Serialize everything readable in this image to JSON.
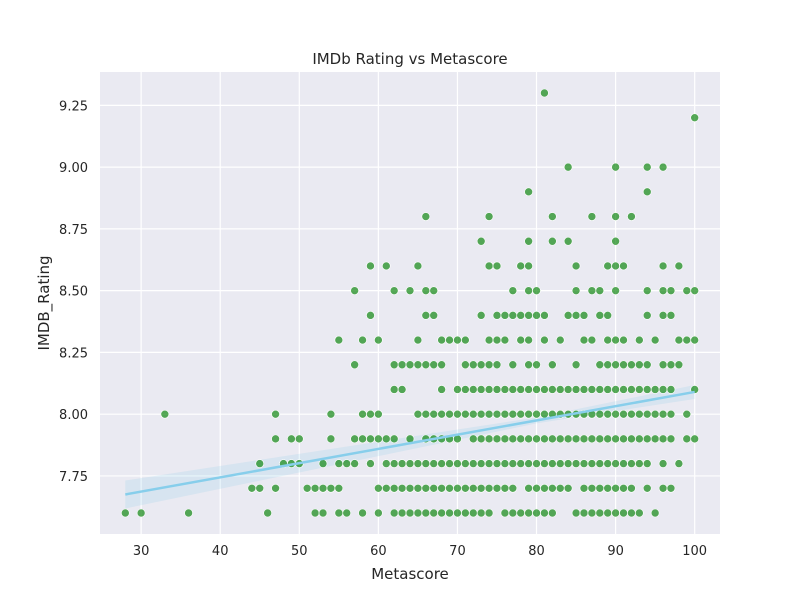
{
  "chart_data": {
    "type": "scatter",
    "title": "IMDb Rating vs Metascore",
    "xlabel": "Metascore",
    "ylabel": "IMDB_Rating",
    "xlim": [
      24.8,
      103.2
    ],
    "ylim": [
      7.515,
      9.385
    ],
    "xticks": [
      "30",
      "40",
      "50",
      "60",
      "70",
      "80",
      "90",
      "100"
    ],
    "xtick_values": [
      30,
      40,
      50,
      60,
      70,
      80,
      90,
      100
    ],
    "yticks": [
      "7.75",
      "8.00",
      "8.25",
      "8.50",
      "8.75",
      "9.00",
      "9.25"
    ],
    "ytick_values": [
      7.75,
      8.0,
      8.25,
      8.5,
      8.75,
      9.0,
      9.25
    ],
    "grid": true,
    "background": "#eaeaf2",
    "colors": {
      "points": "#008000",
      "regression": "#87ceeb"
    },
    "regression": {
      "x": [
        28,
        100
      ],
      "y": [
        7.675,
        8.09
      ]
    },
    "points": [
      [
        28,
        7.6
      ],
      [
        30,
        7.6
      ],
      [
        33,
        8.0
      ],
      [
        36,
        7.6
      ],
      [
        44,
        7.7
      ],
      [
        45,
        7.7
      ],
      [
        45,
        7.8
      ],
      [
        46,
        7.6
      ],
      [
        47,
        8.0
      ],
      [
        47,
        7.9
      ],
      [
        47,
        7.7
      ],
      [
        48,
        7.8
      ],
      [
        49,
        7.9
      ],
      [
        49,
        7.8
      ],
      [
        50,
        7.9
      ],
      [
        50,
        7.8
      ],
      [
        51,
        7.7
      ],
      [
        52,
        7.7
      ],
      [
        52,
        7.6
      ],
      [
        53,
        7.7
      ],
      [
        53,
        7.6
      ],
      [
        53,
        7.8
      ],
      [
        54,
        8.0
      ],
      [
        54,
        7.9
      ],
      [
        54,
        7.7
      ],
      [
        55,
        8.3
      ],
      [
        55,
        7.8
      ],
      [
        55,
        7.7
      ],
      [
        55,
        7.6
      ],
      [
        56,
        7.8
      ],
      [
        56,
        7.6
      ],
      [
        57,
        8.5
      ],
      [
        57,
        8.2
      ],
      [
        57,
        7.9
      ],
      [
        57,
        7.8
      ],
      [
        58,
        8.3
      ],
      [
        58,
        8.0
      ],
      [
        58,
        7.9
      ],
      [
        58,
        7.6
      ],
      [
        59,
        8.6
      ],
      [
        59,
        8.4
      ],
      [
        59,
        8.0
      ],
      [
        59,
        7.9
      ],
      [
        59,
        7.8
      ],
      [
        60,
        8.3
      ],
      [
        60,
        8.0
      ],
      [
        60,
        7.9
      ],
      [
        60,
        7.7
      ],
      [
        60,
        7.6
      ],
      [
        61,
        8.6
      ],
      [
        61,
        7.9
      ],
      [
        61,
        7.8
      ],
      [
        61,
        7.7
      ],
      [
        62,
        8.5
      ],
      [
        62,
        8.2
      ],
      [
        62,
        8.1
      ],
      [
        62,
        7.9
      ],
      [
        62,
        7.8
      ],
      [
        62,
        7.7
      ],
      [
        62,
        7.6
      ],
      [
        63,
        8.2
      ],
      [
        63,
        8.1
      ],
      [
        63,
        7.8
      ],
      [
        63,
        7.7
      ],
      [
        63,
        7.6
      ],
      [
        64,
        8.5
      ],
      [
        64,
        8.2
      ],
      [
        64,
        7.9
      ],
      [
        64,
        7.8
      ],
      [
        64,
        7.7
      ],
      [
        64,
        7.6
      ],
      [
        65,
        8.6
      ],
      [
        65,
        8.3
      ],
      [
        65,
        8.2
      ],
      [
        65,
        8.0
      ],
      [
        65,
        7.8
      ],
      [
        65,
        7.7
      ],
      [
        65,
        7.6
      ],
      [
        66,
        8.8
      ],
      [
        66,
        8.5
      ],
      [
        66,
        8.4
      ],
      [
        66,
        8.2
      ],
      [
        66,
        8.0
      ],
      [
        66,
        7.9
      ],
      [
        66,
        7.8
      ],
      [
        66,
        7.7
      ],
      [
        66,
        7.6
      ],
      [
        67,
        8.5
      ],
      [
        67,
        8.4
      ],
      [
        67,
        8.2
      ],
      [
        67,
        8.0
      ],
      [
        67,
        7.9
      ],
      [
        67,
        7.8
      ],
      [
        67,
        7.7
      ],
      [
        67,
        7.6
      ],
      [
        68,
        8.3
      ],
      [
        68,
        8.2
      ],
      [
        68,
        8.1
      ],
      [
        68,
        8.0
      ],
      [
        68,
        7.9
      ],
      [
        68,
        7.8
      ],
      [
        68,
        7.7
      ],
      [
        68,
        7.6
      ],
      [
        69,
        8.3
      ],
      [
        69,
        8.0
      ],
      [
        69,
        7.9
      ],
      [
        69,
        7.8
      ],
      [
        69,
        7.7
      ],
      [
        69,
        7.6
      ],
      [
        70,
        8.3
      ],
      [
        70,
        8.1
      ],
      [
        70,
        8.0
      ],
      [
        70,
        7.9
      ],
      [
        70,
        7.8
      ],
      [
        70,
        7.7
      ],
      [
        70,
        7.6
      ],
      [
        71,
        8.3
      ],
      [
        71,
        8.2
      ],
      [
        71,
        8.1
      ],
      [
        71,
        8.0
      ],
      [
        71,
        7.8
      ],
      [
        71,
        7.7
      ],
      [
        71,
        7.6
      ],
      [
        72,
        8.2
      ],
      [
        72,
        8.1
      ],
      [
        72,
        8.0
      ],
      [
        72,
        7.9
      ],
      [
        72,
        7.8
      ],
      [
        72,
        7.7
      ],
      [
        72,
        7.6
      ],
      [
        73,
        8.7
      ],
      [
        73,
        8.4
      ],
      [
        73,
        8.2
      ],
      [
        73,
        8.1
      ],
      [
        73,
        8.0
      ],
      [
        73,
        7.9
      ],
      [
        73,
        7.8
      ],
      [
        73,
        7.7
      ],
      [
        73,
        7.6
      ],
      [
        74,
        8.8
      ],
      [
        74,
        8.6
      ],
      [
        74,
        8.3
      ],
      [
        74,
        8.2
      ],
      [
        74,
        8.1
      ],
      [
        74,
        8.0
      ],
      [
        74,
        7.9
      ],
      [
        74,
        7.8
      ],
      [
        74,
        7.7
      ],
      [
        74,
        7.6
      ],
      [
        75,
        8.6
      ],
      [
        75,
        8.4
      ],
      [
        75,
        8.3
      ],
      [
        75,
        8.2
      ],
      [
        75,
        8.1
      ],
      [
        75,
        8.0
      ],
      [
        75,
        7.9
      ],
      [
        75,
        7.8
      ],
      [
        75,
        7.7
      ],
      [
        76,
        8.4
      ],
      [
        76,
        8.3
      ],
      [
        76,
        8.1
      ],
      [
        76,
        8.0
      ],
      [
        76,
        7.9
      ],
      [
        76,
        7.8
      ],
      [
        76,
        7.7
      ],
      [
        76,
        7.6
      ],
      [
        77,
        8.5
      ],
      [
        77,
        8.4
      ],
      [
        77,
        8.2
      ],
      [
        77,
        8.1
      ],
      [
        77,
        8.0
      ],
      [
        77,
        7.9
      ],
      [
        77,
        7.8
      ],
      [
        77,
        7.7
      ],
      [
        77,
        7.6
      ],
      [
        78,
        8.6
      ],
      [
        78,
        8.4
      ],
      [
        78,
        8.3
      ],
      [
        78,
        8.1
      ],
      [
        78,
        8.0
      ],
      [
        78,
        7.9
      ],
      [
        78,
        7.8
      ],
      [
        78,
        7.6
      ],
      [
        79,
        8.9
      ],
      [
        79,
        8.7
      ],
      [
        79,
        8.6
      ],
      [
        79,
        8.5
      ],
      [
        79,
        8.4
      ],
      [
        79,
        8.3
      ],
      [
        79,
        8.2
      ],
      [
        79,
        8.1
      ],
      [
        79,
        8.0
      ],
      [
        79,
        7.9
      ],
      [
        79,
        7.8
      ],
      [
        79,
        7.7
      ],
      [
        79,
        7.6
      ],
      [
        80,
        8.5
      ],
      [
        80,
        8.4
      ],
      [
        80,
        8.2
      ],
      [
        80,
        8.1
      ],
      [
        80,
        8.0
      ],
      [
        80,
        7.9
      ],
      [
        80,
        7.8
      ],
      [
        80,
        7.7
      ],
      [
        80,
        7.6
      ],
      [
        81,
        9.3
      ],
      [
        81,
        8.4
      ],
      [
        81,
        8.3
      ],
      [
        81,
        8.1
      ],
      [
        81,
        8.0
      ],
      [
        81,
        7.9
      ],
      [
        81,
        7.8
      ],
      [
        81,
        7.7
      ],
      [
        81,
        7.6
      ],
      [
        82,
        8.8
      ],
      [
        82,
        8.7
      ],
      [
        82,
        8.2
      ],
      [
        82,
        8.1
      ],
      [
        82,
        8.0
      ],
      [
        82,
        7.9
      ],
      [
        82,
        7.8
      ],
      [
        82,
        7.7
      ],
      [
        82,
        7.6
      ],
      [
        83,
        8.3
      ],
      [
        83,
        8.1
      ],
      [
        83,
        8.0
      ],
      [
        83,
        7.9
      ],
      [
        83,
        7.8
      ],
      [
        83,
        7.7
      ],
      [
        84,
        9.0
      ],
      [
        84,
        8.7
      ],
      [
        84,
        8.4
      ],
      [
        84,
        8.1
      ],
      [
        84,
        8.0
      ],
      [
        84,
        7.9
      ],
      [
        84,
        7.8
      ],
      [
        84,
        7.7
      ],
      [
        85,
        8.6
      ],
      [
        85,
        8.5
      ],
      [
        85,
        8.4
      ],
      [
        85,
        8.2
      ],
      [
        85,
        8.1
      ],
      [
        85,
        8.0
      ],
      [
        85,
        7.9
      ],
      [
        85,
        7.8
      ],
      [
        85,
        7.6
      ],
      [
        86,
        8.4
      ],
      [
        86,
        8.3
      ],
      [
        86,
        8.1
      ],
      [
        86,
        8.0
      ],
      [
        86,
        7.9
      ],
      [
        86,
        7.8
      ],
      [
        86,
        7.7
      ],
      [
        86,
        7.6
      ],
      [
        87,
        8.8
      ],
      [
        87,
        8.5
      ],
      [
        87,
        8.3
      ],
      [
        87,
        8.1
      ],
      [
        87,
        8.0
      ],
      [
        87,
        7.9
      ],
      [
        87,
        7.8
      ],
      [
        87,
        7.7
      ],
      [
        87,
        7.6
      ],
      [
        88,
        8.5
      ],
      [
        88,
        8.4
      ],
      [
        88,
        8.2
      ],
      [
        88,
        8.1
      ],
      [
        88,
        8.0
      ],
      [
        88,
        7.9
      ],
      [
        88,
        7.8
      ],
      [
        88,
        7.7
      ],
      [
        88,
        7.6
      ],
      [
        89,
        8.6
      ],
      [
        89,
        8.4
      ],
      [
        89,
        8.3
      ],
      [
        89,
        8.2
      ],
      [
        89,
        8.1
      ],
      [
        89,
        8.0
      ],
      [
        89,
        7.9
      ],
      [
        89,
        7.8
      ],
      [
        89,
        7.7
      ],
      [
        89,
        7.6
      ],
      [
        90,
        9.0
      ],
      [
        90,
        8.8
      ],
      [
        90,
        8.7
      ],
      [
        90,
        8.6
      ],
      [
        90,
        8.5
      ],
      [
        90,
        8.3
      ],
      [
        90,
        8.2
      ],
      [
        90,
        8.1
      ],
      [
        90,
        8.0
      ],
      [
        90,
        7.9
      ],
      [
        90,
        7.8
      ],
      [
        90,
        7.7
      ],
      [
        90,
        7.6
      ],
      [
        91,
        8.6
      ],
      [
        91,
        8.3
      ],
      [
        91,
        8.2
      ],
      [
        91,
        8.1
      ],
      [
        91,
        8.0
      ],
      [
        91,
        7.9
      ],
      [
        91,
        7.8
      ],
      [
        91,
        7.7
      ],
      [
        91,
        7.6
      ],
      [
        92,
        8.8
      ],
      [
        92,
        8.2
      ],
      [
        92,
        8.1
      ],
      [
        92,
        8.0
      ],
      [
        92,
        7.9
      ],
      [
        92,
        7.8
      ],
      [
        92,
        7.7
      ],
      [
        92,
        7.6
      ],
      [
        93,
        8.3
      ],
      [
        93,
        8.2
      ],
      [
        93,
        8.1
      ],
      [
        93,
        8.0
      ],
      [
        93,
        7.9
      ],
      [
        93,
        7.8
      ],
      [
        93,
        7.6
      ],
      [
        94,
        9.0
      ],
      [
        94,
        8.9
      ],
      [
        94,
        8.5
      ],
      [
        94,
        8.4
      ],
      [
        94,
        8.2
      ],
      [
        94,
        8.1
      ],
      [
        94,
        8.0
      ],
      [
        94,
        7.9
      ],
      [
        94,
        7.8
      ],
      [
        94,
        7.7
      ],
      [
        95,
        8.3
      ],
      [
        95,
        8.1
      ],
      [
        95,
        8.0
      ],
      [
        95,
        7.9
      ],
      [
        95,
        7.6
      ],
      [
        96,
        9.0
      ],
      [
        96,
        8.6
      ],
      [
        96,
        8.5
      ],
      [
        96,
        8.4
      ],
      [
        96,
        8.2
      ],
      [
        96,
        8.1
      ],
      [
        96,
        8.0
      ],
      [
        96,
        7.9
      ],
      [
        96,
        7.8
      ],
      [
        96,
        7.7
      ],
      [
        97,
        8.5
      ],
      [
        97,
        8.4
      ],
      [
        97,
        8.2
      ],
      [
        97,
        8.1
      ],
      [
        97,
        8.0
      ],
      [
        97,
        7.9
      ],
      [
        97,
        7.7
      ],
      [
        98,
        8.6
      ],
      [
        98,
        8.3
      ],
      [
        98,
        8.2
      ],
      [
        98,
        7.8
      ],
      [
        99,
        8.5
      ],
      [
        99,
        8.3
      ],
      [
        99,
        8.0
      ],
      [
        99,
        7.9
      ],
      [
        100,
        9.2
      ],
      [
        100,
        8.5
      ],
      [
        100,
        8.3
      ],
      [
        100,
        8.1
      ],
      [
        100,
        7.9
      ]
    ]
  }
}
